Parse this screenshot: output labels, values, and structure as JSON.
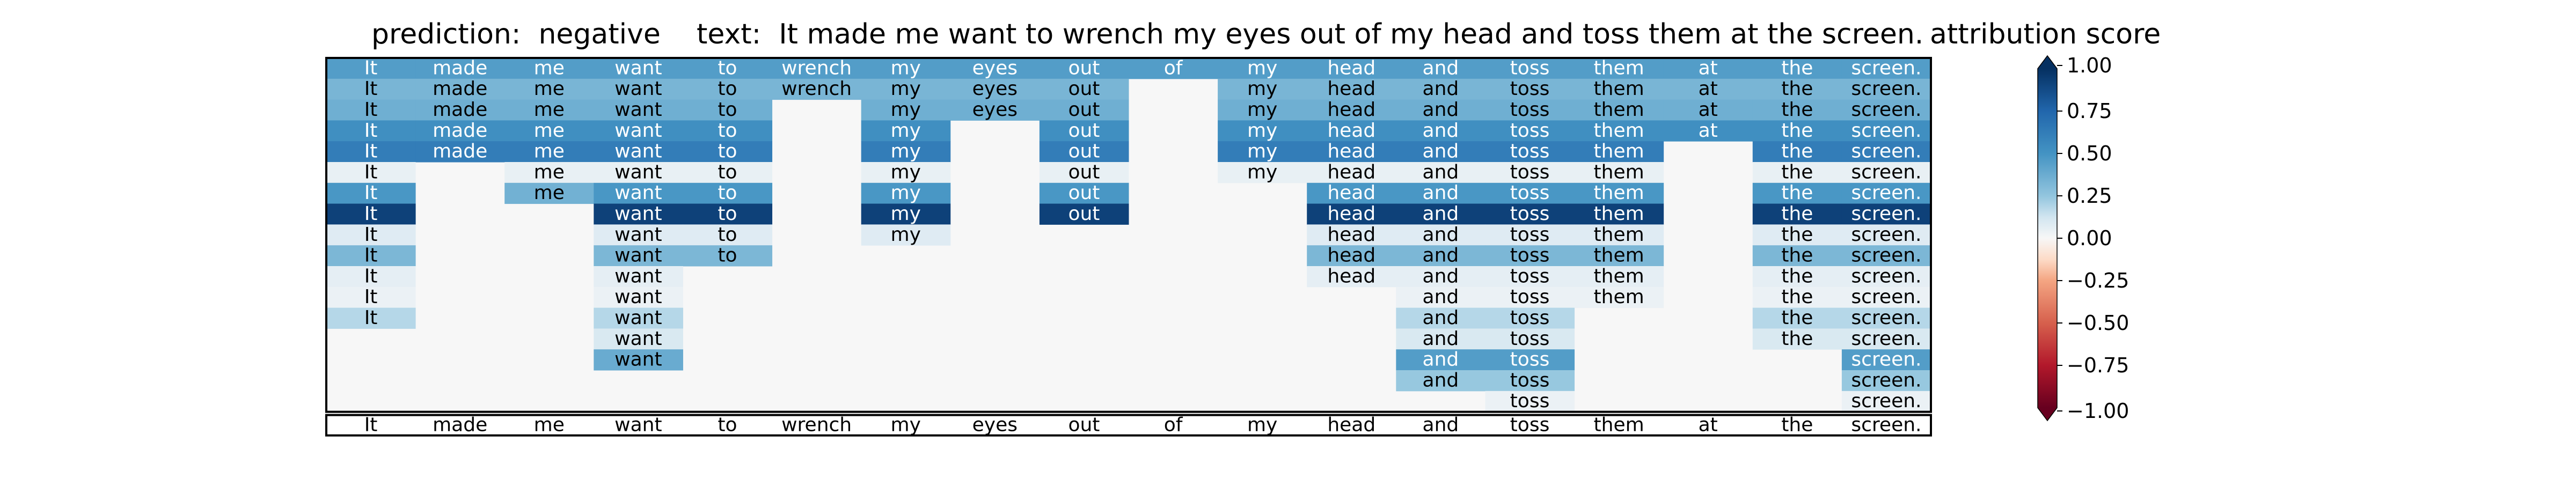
{
  "header": {
    "prediction": "prediction:  negative",
    "text": "text:  It made me want to wrench my eyes out of my head and toss them at the screen.",
    "colorbar_title": "attribution score"
  },
  "chart_data": {
    "type": "heatmap",
    "title": "",
    "tokens": [
      "It",
      "made",
      "me",
      "want",
      "to",
      "wrench",
      "my",
      "eyes",
      "out",
      "of",
      "my",
      "head",
      "and",
      "toss",
      "them",
      "at",
      "the",
      "screen."
    ],
    "bottom_row_tokens": [
      "It",
      "made",
      "me",
      "want",
      "to",
      "wrench",
      "my",
      "eyes",
      "out",
      "of",
      "my",
      "head",
      "and",
      "toss",
      "them",
      "at",
      "the",
      "screen."
    ],
    "empty_cell_value": 0.0,
    "rows": [
      [
        0.45,
        0.45,
        0.45,
        0.45,
        0.45,
        0.45,
        0.45,
        0.45,
        0.45,
        0.45,
        0.45,
        0.45,
        0.45,
        0.45,
        0.45,
        0.45,
        0.45,
        0.45
      ],
      [
        0.33,
        0.33,
        0.33,
        0.33,
        0.33,
        0.33,
        0.33,
        0.33,
        0.33,
        null,
        0.33,
        0.33,
        0.33,
        0.33,
        0.33,
        0.33,
        0.33,
        0.33
      ],
      [
        0.36,
        0.36,
        0.36,
        0.36,
        0.36,
        null,
        0.36,
        0.36,
        0.36,
        null,
        0.36,
        0.36,
        0.36,
        0.36,
        0.36,
        0.36,
        0.36,
        0.36
      ],
      [
        0.52,
        0.52,
        0.52,
        0.52,
        0.52,
        null,
        0.52,
        null,
        0.52,
        null,
        0.52,
        0.52,
        0.52,
        0.52,
        0.52,
        0.52,
        0.52,
        0.52
      ],
      [
        0.62,
        0.62,
        0.62,
        0.62,
        0.62,
        null,
        0.62,
        null,
        0.62,
        null,
        0.62,
        0.62,
        0.62,
        0.62,
        0.62,
        null,
        0.62,
        0.62
      ],
      [
        0.05,
        null,
        0.05,
        0.05,
        0.05,
        null,
        0.05,
        null,
        0.05,
        null,
        0.05,
        0.05,
        0.05,
        0.05,
        0.05,
        null,
        0.05,
        0.05
      ],
      [
        0.48,
        null,
        0.35,
        0.48,
        0.48,
        null,
        0.48,
        null,
        0.48,
        null,
        null,
        0.48,
        0.48,
        0.48,
        0.48,
        null,
        0.48,
        0.48
      ],
      [
        0.92,
        null,
        null,
        0.92,
        0.92,
        null,
        0.92,
        null,
        0.92,
        null,
        null,
        0.92,
        0.92,
        0.92,
        0.92,
        null,
        0.92,
        0.92
      ],
      [
        0.08,
        null,
        null,
        0.08,
        0.08,
        null,
        0.08,
        null,
        null,
        null,
        null,
        0.08,
        0.08,
        0.08,
        0.08,
        null,
        0.08,
        0.08
      ],
      [
        0.32,
        null,
        null,
        0.32,
        0.32,
        null,
        null,
        null,
        null,
        null,
        null,
        0.32,
        0.32,
        0.32,
        0.32,
        null,
        0.32,
        0.32
      ],
      [
        0.06,
        null,
        null,
        0.06,
        null,
        null,
        null,
        null,
        null,
        null,
        null,
        0.06,
        0.06,
        0.06,
        0.06,
        null,
        0.06,
        0.06
      ],
      [
        0.04,
        null,
        null,
        0.04,
        null,
        null,
        null,
        null,
        null,
        null,
        null,
        null,
        0.04,
        0.04,
        0.04,
        null,
        0.04,
        0.04
      ],
      [
        0.18,
        null,
        null,
        0.18,
        null,
        null,
        null,
        null,
        null,
        null,
        null,
        null,
        0.18,
        0.18,
        null,
        null,
        0.18,
        0.18
      ],
      [
        null,
        null,
        null,
        0.1,
        null,
        null,
        null,
        null,
        null,
        null,
        null,
        null,
        0.1,
        0.1,
        null,
        null,
        0.1,
        0.1
      ],
      [
        null,
        null,
        null,
        0.38,
        null,
        null,
        null,
        null,
        null,
        null,
        null,
        null,
        0.45,
        0.45,
        null,
        null,
        null,
        0.45
      ],
      [
        null,
        null,
        null,
        null,
        null,
        null,
        null,
        null,
        null,
        null,
        null,
        null,
        0.24,
        0.24,
        null,
        null,
        null,
        0.24
      ],
      [
        null,
        null,
        null,
        null,
        null,
        null,
        null,
        null,
        null,
        null,
        null,
        null,
        null,
        0.04,
        null,
        null,
        null,
        0.04
      ]
    ],
    "colorbar": {
      "label": "attribution score",
      "colormap": "RdBu",
      "range": [
        -1.0,
        1.0
      ],
      "extend": "both",
      "tick_values": [
        1.0,
        0.75,
        0.5,
        0.25,
        0.0,
        -0.25,
        -0.5,
        -0.75,
        -1.0
      ],
      "tick_labels": [
        "1.00",
        "0.75",
        "0.50",
        "0.25",
        "0.00",
        "−0.25",
        "−0.50",
        "−0.75",
        "−1.00"
      ]
    }
  }
}
